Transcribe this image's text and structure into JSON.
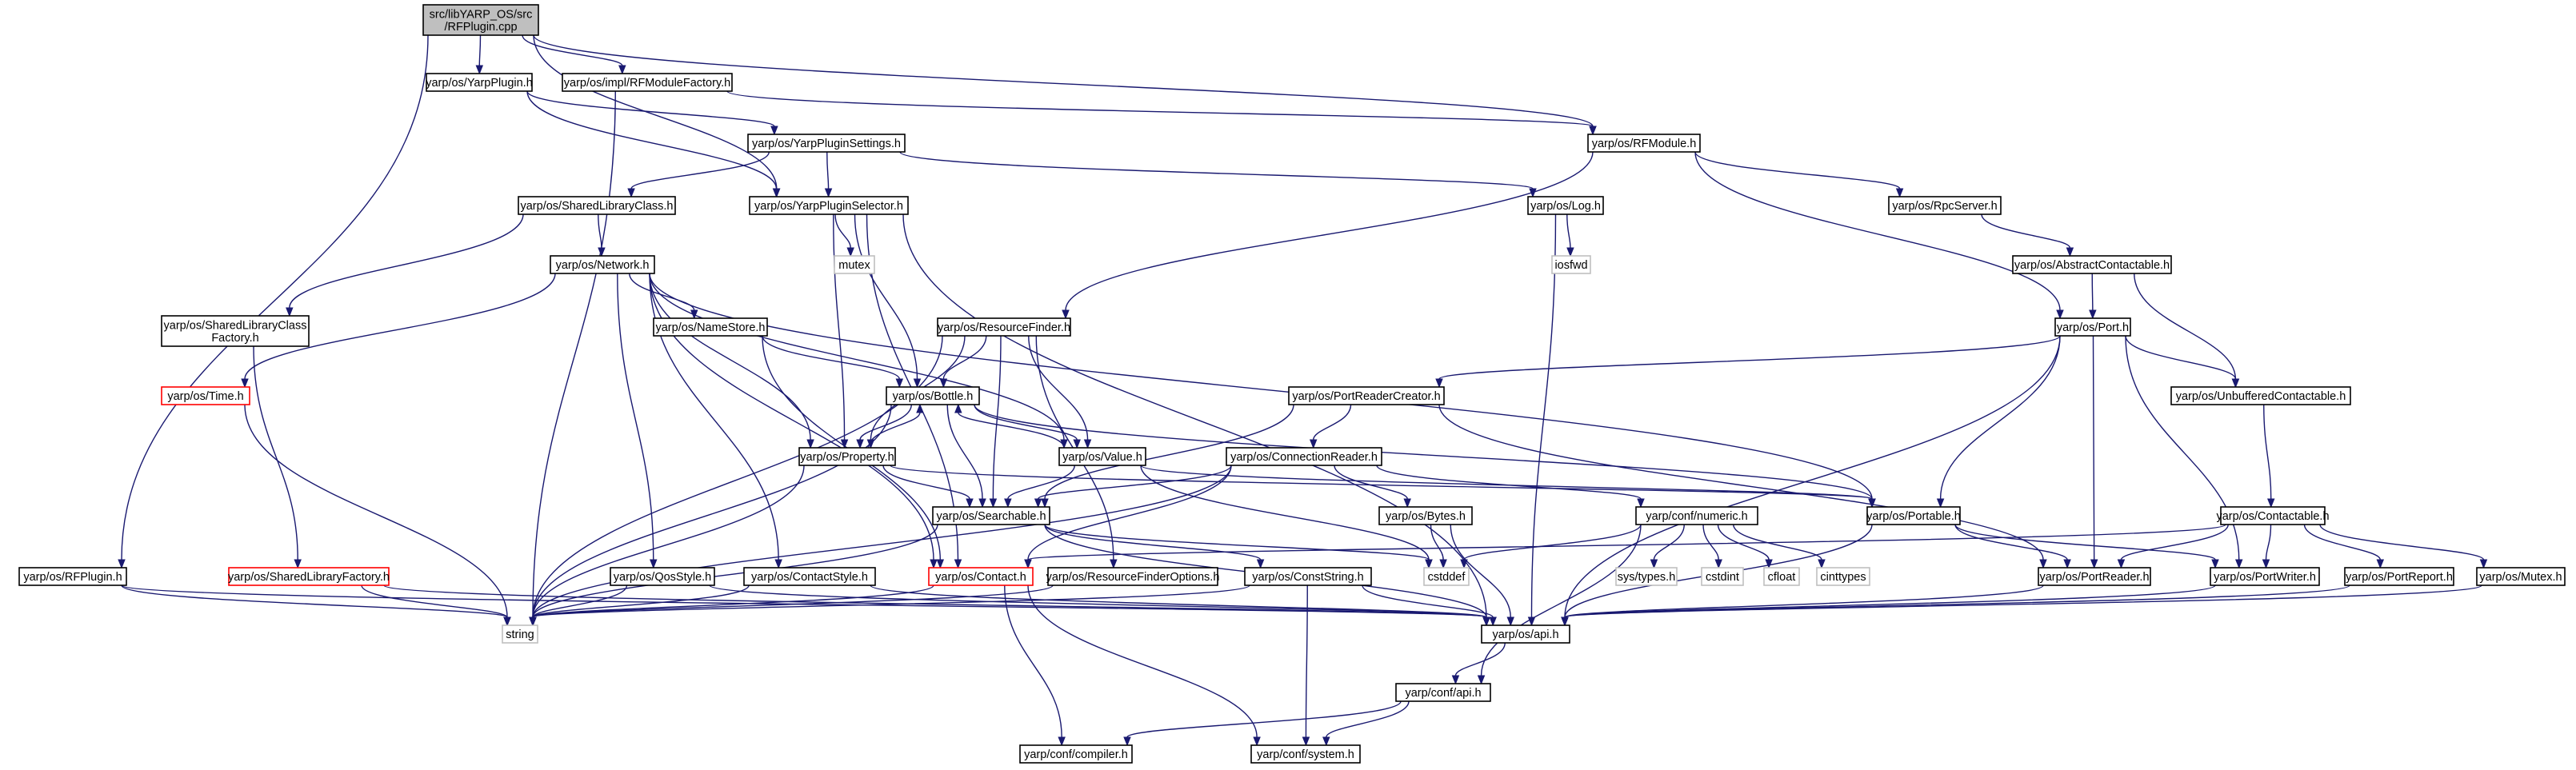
{
  "diagram": {
    "colors": {
      "edge": "#191970",
      "node_border": "#000000",
      "root_fill": "#bfbfbf",
      "broken_border": "#ff0000",
      "external_border": "#bfbfbf"
    },
    "nodes": [
      {
        "id": "root",
        "lines": [
          "src/libYARP_OS/src",
          "/RFPlugin.cpp"
        ],
        "kind": "root"
      },
      {
        "id": "yarpplugin",
        "lines": [
          "yarp/os/YarpPlugin.h"
        ],
        "kind": "normal"
      },
      {
        "id": "rfmodulefactory",
        "lines": [
          "yarp/os/impl/RFModuleFactory.h"
        ],
        "kind": "normal"
      },
      {
        "id": "rfmodule",
        "lines": [
          "yarp/os/RFModule.h"
        ],
        "kind": "normal"
      },
      {
        "id": "yarppluginsettings",
        "lines": [
          "yarp/os/YarpPluginSettings.h"
        ],
        "kind": "normal"
      },
      {
        "id": "sharedlibraryclass",
        "lines": [
          "yarp/os/SharedLibraryClass.h"
        ],
        "kind": "normal"
      },
      {
        "id": "yarppluginselector",
        "lines": [
          "yarp/os/YarpPluginSelector.h"
        ],
        "kind": "normal"
      },
      {
        "id": "log",
        "lines": [
          "yarp/os/Log.h"
        ],
        "kind": "normal"
      },
      {
        "id": "rpcserver",
        "lines": [
          "yarp/os/RpcServer.h"
        ],
        "kind": "normal"
      },
      {
        "id": "network",
        "lines": [
          "yarp/os/Network.h"
        ],
        "kind": "normal"
      },
      {
        "id": "mutex",
        "lines": [
          "mutex"
        ],
        "kind": "external"
      },
      {
        "id": "iosfwd",
        "lines": [
          "iosfwd"
        ],
        "kind": "external"
      },
      {
        "id": "abstractcontactable",
        "lines": [
          "yarp/os/AbstractContactable.h"
        ],
        "kind": "normal"
      },
      {
        "id": "sharedlibraryclassfactory",
        "lines": [
          "yarp/os/SharedLibraryClass",
          "Factory.h"
        ],
        "kind": "normal"
      },
      {
        "id": "namestore",
        "lines": [
          "yarp/os/NameStore.h"
        ],
        "kind": "normal"
      },
      {
        "id": "resourcefinder",
        "lines": [
          "yarp/os/ResourceFinder.h"
        ],
        "kind": "normal"
      },
      {
        "id": "port",
        "lines": [
          "yarp/os/Port.h"
        ],
        "kind": "normal"
      },
      {
        "id": "time",
        "lines": [
          "yarp/os/Time.h"
        ],
        "kind": "broken"
      },
      {
        "id": "bottle",
        "lines": [
          "yarp/os/Bottle.h"
        ],
        "kind": "normal"
      },
      {
        "id": "portreadercreator",
        "lines": [
          "yarp/os/PortReaderCreator.h"
        ],
        "kind": "normal"
      },
      {
        "id": "unbufferedcontactable",
        "lines": [
          "yarp/os/UnbufferedContactable.h"
        ],
        "kind": "normal"
      },
      {
        "id": "property",
        "lines": [
          "yarp/os/Property.h"
        ],
        "kind": "normal"
      },
      {
        "id": "value",
        "lines": [
          "yarp/os/Value.h"
        ],
        "kind": "normal"
      },
      {
        "id": "connectionreader",
        "lines": [
          "yarp/os/ConnectionReader.h"
        ],
        "kind": "normal"
      },
      {
        "id": "bytes",
        "lines": [
          "yarp/os/Bytes.h"
        ],
        "kind": "normal"
      },
      {
        "id": "searchable",
        "lines": [
          "yarp/os/Searchable.h"
        ],
        "kind": "normal"
      },
      {
        "id": "confnumeric",
        "lines": [
          "yarp/conf/numeric.h"
        ],
        "kind": "normal"
      },
      {
        "id": "portable",
        "lines": [
          "yarp/os/Portable.h"
        ],
        "kind": "normal"
      },
      {
        "id": "contactable",
        "lines": [
          "yarp/os/Contactable.h"
        ],
        "kind": "normal"
      },
      {
        "id": "rfplugin",
        "lines": [
          "yarp/os/RFPlugin.h"
        ],
        "kind": "normal"
      },
      {
        "id": "sharedlibraryfactory",
        "lines": [
          "yarp/os/SharedLibraryFactory.h"
        ],
        "kind": "broken"
      },
      {
        "id": "qosstyle",
        "lines": [
          "yarp/os/QosStyle.h"
        ],
        "kind": "normal"
      },
      {
        "id": "contactstyle",
        "lines": [
          "yarp/os/ContactStyle.h"
        ],
        "kind": "normal"
      },
      {
        "id": "contact",
        "lines": [
          "yarp/os/Contact.h"
        ],
        "kind": "broken"
      },
      {
        "id": "resourcefinderoptions",
        "lines": [
          "yarp/os/ResourceFinderOptions.h"
        ],
        "kind": "normal"
      },
      {
        "id": "conststring",
        "lines": [
          "yarp/os/ConstString.h"
        ],
        "kind": "normal"
      },
      {
        "id": "cstddef",
        "lines": [
          "cstddef"
        ],
        "kind": "external"
      },
      {
        "id": "systypes",
        "lines": [
          "sys/types.h"
        ],
        "kind": "external"
      },
      {
        "id": "cstdint",
        "lines": [
          "cstdint"
        ],
        "kind": "external"
      },
      {
        "id": "cfloat",
        "lines": [
          "cfloat"
        ],
        "kind": "external"
      },
      {
        "id": "cinttypes",
        "lines": [
          "cinttypes"
        ],
        "kind": "external"
      },
      {
        "id": "portreader",
        "lines": [
          "yarp/os/PortReader.h"
        ],
        "kind": "normal"
      },
      {
        "id": "portwriter",
        "lines": [
          "yarp/os/PortWriter.h"
        ],
        "kind": "normal"
      },
      {
        "id": "portreport",
        "lines": [
          "yarp/os/PortReport.h"
        ],
        "kind": "normal"
      },
      {
        "id": "osmutex",
        "lines": [
          "yarp/os/Mutex.h"
        ],
        "kind": "normal"
      },
      {
        "id": "string",
        "lines": [
          "string"
        ],
        "kind": "external"
      },
      {
        "id": "api",
        "lines": [
          "yarp/os/api.h"
        ],
        "kind": "normal"
      },
      {
        "id": "confapi",
        "lines": [
          "yarp/conf/api.h"
        ],
        "kind": "normal"
      },
      {
        "id": "compiler",
        "lines": [
          "yarp/conf/compiler.h"
        ],
        "kind": "normal"
      },
      {
        "id": "system",
        "lines": [
          "yarp/conf/system.h"
        ],
        "kind": "normal"
      }
    ],
    "edges": [
      [
        "root",
        "yarpplugin"
      ],
      [
        "root",
        "rfmodulefactory"
      ],
      [
        "root",
        "rfmodule"
      ],
      [
        "root",
        "rfplugin"
      ],
      [
        "root",
        "yarppluginselector"
      ],
      [
        "yarpplugin",
        "yarppluginsettings"
      ],
      [
        "yarpplugin",
        "yarppluginselector"
      ],
      [
        "rfmodulefactory",
        "rfmodule"
      ],
      [
        "rfmodulefactory",
        "string"
      ],
      [
        "yarppluginsettings",
        "sharedlibraryclass"
      ],
      [
        "yarppluginsettings",
        "yarppluginselector"
      ],
      [
        "yarppluginsettings",
        "log"
      ],
      [
        "rfmodule",
        "rpcserver"
      ],
      [
        "rfmodule",
        "port"
      ],
      [
        "rfmodule",
        "resourcefinder"
      ],
      [
        "sharedlibraryclass",
        "network"
      ],
      [
        "sharedlibraryclass",
        "sharedlibraryclassfactory"
      ],
      [
        "yarppluginselector",
        "mutex"
      ],
      [
        "yarppluginselector",
        "bottle"
      ],
      [
        "yarppluginselector",
        "property"
      ],
      [
        "yarppluginselector",
        "api"
      ],
      [
        "yarppluginselector",
        "contact"
      ],
      [
        "log",
        "iosfwd"
      ],
      [
        "log",
        "api"
      ],
      [
        "rpcserver",
        "abstractcontactable"
      ],
      [
        "abstractcontactable",
        "port"
      ],
      [
        "abstractcontactable",
        "unbufferedcontactable"
      ],
      [
        "network",
        "time"
      ],
      [
        "network",
        "namestore"
      ],
      [
        "network",
        "value"
      ],
      [
        "network",
        "portable"
      ],
      [
        "network",
        "property"
      ],
      [
        "network",
        "qosstyle"
      ],
      [
        "network",
        "contactstyle"
      ],
      [
        "network",
        "contact"
      ],
      [
        "sharedlibraryclassfactory",
        "sharedlibraryfactory"
      ],
      [
        "namestore",
        "bottle"
      ],
      [
        "namestore",
        "contact"
      ],
      [
        "resourcefinder",
        "bottle"
      ],
      [
        "resourcefinder",
        "property"
      ],
      [
        "resourcefinder",
        "value"
      ],
      [
        "resourcefinder",
        "searchable"
      ],
      [
        "resourcefinder",
        "string"
      ],
      [
        "resourcefinder",
        "resourcefinderoptions"
      ],
      [
        "port",
        "portreadercreator"
      ],
      [
        "port",
        "unbufferedcontactable"
      ],
      [
        "port",
        "portable"
      ],
      [
        "port",
        "portreader"
      ],
      [
        "port",
        "portwriter"
      ],
      [
        "port",
        "api"
      ],
      [
        "time",
        "string"
      ],
      [
        "bottle",
        "property"
      ],
      [
        "bottle",
        "value"
      ],
      [
        "bottle",
        "searchable"
      ],
      [
        "bottle",
        "portable"
      ],
      [
        "bottle",
        "string"
      ],
      [
        "portreadercreator",
        "connectionreader"
      ],
      [
        "portreadercreator",
        "portreader"
      ],
      [
        "portreadercreator",
        "searchable"
      ],
      [
        "unbufferedcontactable",
        "contactable"
      ],
      [
        "property",
        "bottle"
      ],
      [
        "property",
        "searchable"
      ],
      [
        "property",
        "portable"
      ],
      [
        "property",
        "string"
      ],
      [
        "value",
        "bottle"
      ],
      [
        "value",
        "searchable"
      ],
      [
        "value",
        "portable"
      ],
      [
        "value",
        "cstddef"
      ],
      [
        "connectionreader",
        "bytes"
      ],
      [
        "connectionreader",
        "searchable"
      ],
      [
        "connectionreader",
        "contact"
      ],
      [
        "connectionreader",
        "confnumeric"
      ],
      [
        "connectionreader",
        "string"
      ],
      [
        "bytes",
        "cstddef"
      ],
      [
        "bytes",
        "api"
      ],
      [
        "searchable",
        "conststring"
      ],
      [
        "searchable",
        "api"
      ],
      [
        "searchable",
        "string"
      ],
      [
        "searchable",
        "cstddef"
      ],
      [
        "confnumeric",
        "systypes"
      ],
      [
        "confnumeric",
        "cstdint"
      ],
      [
        "confnumeric",
        "cfloat"
      ],
      [
        "confnumeric",
        "cinttypes"
      ],
      [
        "confnumeric",
        "cstddef"
      ],
      [
        "confnumeric",
        "confapi"
      ],
      [
        "portable",
        "portreader"
      ],
      [
        "portable",
        "portwriter"
      ],
      [
        "portable",
        "api"
      ],
      [
        "contactable",
        "contact"
      ],
      [
        "contactable",
        "portreader"
      ],
      [
        "contactable",
        "portwriter"
      ],
      [
        "contactable",
        "portreport"
      ],
      [
        "contactable",
        "osmutex"
      ],
      [
        "rfplugin",
        "api"
      ],
      [
        "rfplugin",
        "string"
      ],
      [
        "sharedlibraryfactory",
        "string"
      ],
      [
        "sharedlibraryfactory",
        "api"
      ],
      [
        "qosstyle",
        "api"
      ],
      [
        "qosstyle",
        "string"
      ],
      [
        "contactstyle",
        "api"
      ],
      [
        "contactstyle",
        "string"
      ],
      [
        "contact",
        "string"
      ],
      [
        "contact",
        "compiler"
      ],
      [
        "contact",
        "system"
      ],
      [
        "resourcefinderoptions",
        "string"
      ],
      [
        "conststring",
        "api"
      ],
      [
        "conststring",
        "system"
      ],
      [
        "conststring",
        "string"
      ],
      [
        "portreader",
        "api"
      ],
      [
        "portwriter",
        "api"
      ],
      [
        "portreport",
        "api"
      ],
      [
        "osmutex",
        "api"
      ],
      [
        "api",
        "confapi"
      ],
      [
        "confapi",
        "compiler"
      ],
      [
        "confapi",
        "system"
      ]
    ]
  }
}
